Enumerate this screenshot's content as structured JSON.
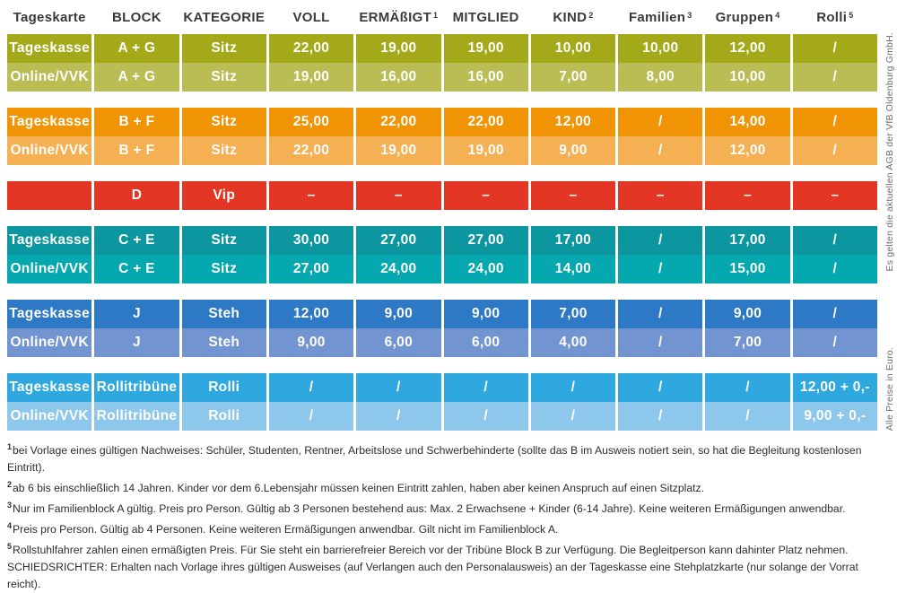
{
  "table": {
    "headers": [
      {
        "label": "Tageskarte",
        "sup": ""
      },
      {
        "label": "BLOCK",
        "sup": ""
      },
      {
        "label": "KATEGORIE",
        "sup": ""
      },
      {
        "label": "VOLL",
        "sup": ""
      },
      {
        "label": "ERMÄßIGT",
        "sup": "1"
      },
      {
        "label": "MITGLIED",
        "sup": ""
      },
      {
        "label": "KIND",
        "sup": "2"
      },
      {
        "label": "Familien",
        "sup": "3"
      },
      {
        "label": "Gruppen",
        "sup": "4"
      },
      {
        "label": "Rolli",
        "sup": "5"
      }
    ],
    "bands": [
      {
        "name": "band-block-a-g",
        "colors": {
          "dark": "#a4a91a",
          "light": "#b9bd54"
        },
        "rows": [
          [
            "Tageskasse",
            "A + G",
            "Sitz",
            "22,00",
            "19,00",
            "19,00",
            "10,00",
            "10,00",
            "12,00",
            "/"
          ],
          [
            "Online/VVK",
            "A + G",
            "Sitz",
            "19,00",
            "16,00",
            "16,00",
            "7,00",
            "8,00",
            "10,00",
            "/"
          ]
        ]
      },
      {
        "name": "band-block-b-f",
        "colors": {
          "dark": "#f09405",
          "light": "#f5b054"
        },
        "rows": [
          [
            "Tageskasse",
            "B + F",
            "Sitz",
            "25,00",
            "22,00",
            "22,00",
            "12,00",
            "/",
            "14,00",
            "/"
          ],
          [
            "Online/VVK",
            "B + F",
            "Sitz",
            "22,00",
            "19,00",
            "19,00",
            "9,00",
            "/",
            "12,00",
            "/"
          ]
        ]
      },
      {
        "name": "band-block-d-vip",
        "colors": {
          "dark": "#e43624",
          "light": "#e43624"
        },
        "rows": [
          [
            "",
            "D",
            "Vip",
            "–",
            "–",
            "–",
            "–",
            "–",
            "–",
            "–"
          ]
        ]
      },
      {
        "name": "band-block-c-e",
        "colors": {
          "dark": "#0c96a0",
          "light": "#04a8ae"
        },
        "rows": [
          [
            "Tageskasse",
            "C + E",
            "Sitz",
            "30,00",
            "27,00",
            "27,00",
            "17,00",
            "/",
            "17,00",
            "/"
          ],
          [
            "Online/VVK",
            "C + E",
            "Sitz",
            "27,00",
            "24,00",
            "24,00",
            "14,00",
            "/",
            "15,00",
            "/"
          ]
        ]
      },
      {
        "name": "band-block-j",
        "colors": {
          "dark": "#2e79c5",
          "light": "#7295d2"
        },
        "rows": [
          [
            "Tageskasse",
            "J",
            "Steh",
            "12,00",
            "9,00",
            "9,00",
            "7,00",
            "/",
            "9,00",
            "/"
          ],
          [
            "Online/VVK",
            "J",
            "Steh",
            "9,00",
            "6,00",
            "6,00",
            "4,00",
            "/",
            "7,00",
            "/"
          ]
        ]
      },
      {
        "name": "band-rollitribuene",
        "colors": {
          "dark": "#2fa8df",
          "light": "#8ec7ec"
        },
        "rows": [
          [
            "Tageskasse",
            "Rollitribüne",
            "Rolli",
            "/",
            "/",
            "/",
            "/",
            "/",
            "/",
            "12,00 + 0,-"
          ],
          [
            "Online/VVK",
            "Rollitribüne",
            "Rolli",
            "/",
            "/",
            "/",
            "/",
            "/",
            "/",
            "9,00 + 0,-"
          ]
        ]
      }
    ]
  },
  "footnotes": [
    {
      "sup": "1",
      "text": "bei Vorlage eines gültigen Nachweises: Schüler, Studenten, Rentner, Arbeitslose und Schwerbehinderte (sollte das B im Ausweis notiert sein, so hat die Begleitung kostenlosen Eintritt)."
    },
    {
      "sup": "2",
      "text": "ab 6 bis einschließlich 14 Jahren. Kinder vor dem 6.Lebensjahr müssen keinen Eintritt zahlen, haben aber keinen Anspruch auf einen Sitzplatz."
    },
    {
      "sup": "3",
      "text": "Nur im Familienblock A gültig. Preis pro Person. Gültig ab 3 Personen bestehend aus: Max. 2 Erwachsene + Kinder (6-14 Jahre). Keine weiteren Ermäßigungen anwendbar."
    },
    {
      "sup": "4",
      "text": "Preis pro Person. Gültig ab 4 Personen. Keine weiteren Ermäßigungen anwendbar. Gilt nicht im Familienblock A."
    },
    {
      "sup": "5",
      "text": "Rollstuhlfahrer zahlen einen ermäßigten Preis. Für Sie steht ein barrierefreier Bereich vor der Tribüne Block B zur Verfügung. Die Begleitperson kann dahinter Platz nehmen."
    },
    {
      "sup": "",
      "text": "SCHIEDSRICHTER: Erhalten nach Vorlage ihres gültigen Ausweises (auf Verlangen auch den Personalausweis) an der Tageskasse eine Stehplatzkarte (nur solange der Vorrat reicht)."
    }
  ],
  "side_notes": {
    "top": "Es gelten die aktuellen AGB der VfB Oldenburg GmbH.",
    "bottom": "Alle Preise in Euro."
  }
}
